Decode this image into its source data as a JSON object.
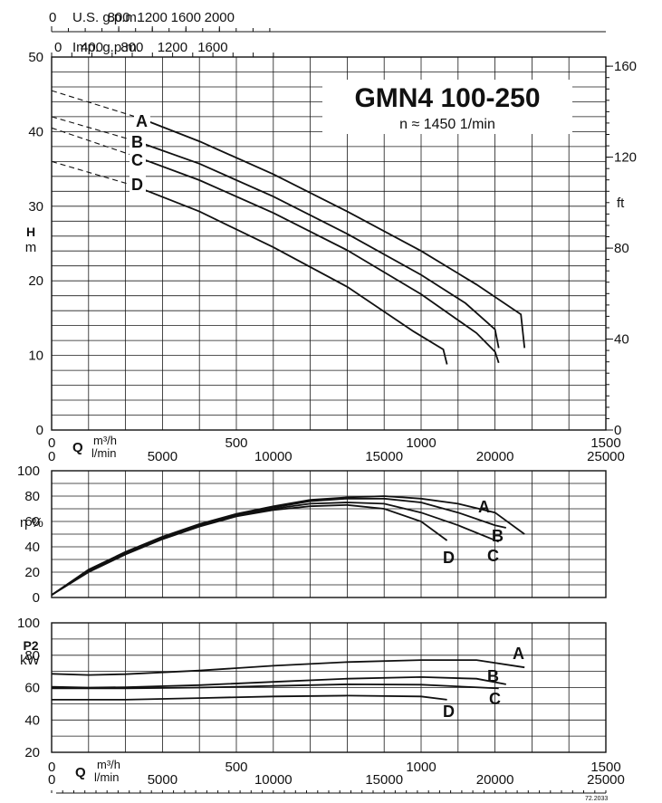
{
  "chart_data": [
    {
      "id": "head",
      "type": "line",
      "title": "GMN4 100-250",
      "subtitle": "n ≈ 1450 1/min",
      "xlabel_q": "Q",
      "xlabel_units": [
        "m³/h",
        "l/min"
      ],
      "ylabel": "H",
      "yunit": "m",
      "y2unit": "ft",
      "xlim": [
        0,
        1500
      ],
      "ylim": [
        0,
        50
      ],
      "y_ticks": [
        0,
        10,
        20,
        30,
        40,
        50
      ],
      "y2_ticks": [
        {
          "label": "0",
          "value": 0
        },
        {
          "label": "40",
          "value": 12.19
        },
        {
          "label": "80",
          "value": 24.38
        },
        {
          "label": "120",
          "value": 36.58
        },
        {
          "label": "160",
          "value": 48.77
        }
      ],
      "x_ticks_m3h": [
        {
          "label": "0",
          "value": 0
        },
        {
          "label": "500",
          "value": 500
        },
        {
          "label": "1000",
          "value": 1000
        },
        {
          "label": "1500",
          "value": 1500
        }
      ],
      "x_ticks_lmin": [
        {
          "label": "0",
          "value": 0
        },
        {
          "label": "5000",
          "value": 300
        },
        {
          "label": "10000",
          "value": 600
        },
        {
          "label": "15000",
          "value": 900
        },
        {
          "label": "20000",
          "value": 1200
        },
        {
          "label": "25000",
          "value": 1500
        }
      ],
      "top_axis_usgpm": {
        "label": "U.S. g.p.m.",
        "ticks": [
          {
            "label": "0",
            "value": 0
          },
          {
            "label": "800",
            "value": 181.7
          },
          {
            "label": "1200",
            "value": 272.5
          },
          {
            "label": "1600",
            "value": 363.4
          },
          {
            "label": "2000",
            "value": 454.2
          }
        ]
      },
      "top_axis_impgpm": {
        "label": "Imp. g.p.m.",
        "ticks": [
          {
            "label": "0",
            "value": 0
          },
          {
            "label": "400",
            "value": 109
          },
          {
            "label": "800",
            "value": 218
          },
          {
            "label": "1200",
            "value": 327
          },
          {
            "label": "1600",
            "value": 436
          }
        ]
      },
      "series": [
        {
          "name": "A",
          "extension": [
            [
              0,
              45.5
            ],
            [
              240,
              41.8
            ]
          ],
          "points": [
            [
              240,
              41.8
            ],
            [
              400,
              38.7
            ],
            [
              600,
              34.3
            ],
            [
              800,
              29.3
            ],
            [
              1000,
              24.0
            ],
            [
              1150,
              19.5
            ],
            [
              1270,
              15.5
            ],
            [
              1280,
              11.0
            ]
          ]
        },
        {
          "name": "B",
          "extension": [
            [
              0,
              42.0
            ],
            [
              230,
              38.7
            ]
          ],
          "points": [
            [
              230,
              38.7
            ],
            [
              400,
              35.7
            ],
            [
              600,
              31.3
            ],
            [
              800,
              26.3
            ],
            [
              1000,
              20.8
            ],
            [
              1120,
              17.0
            ],
            [
              1200,
              13.5
            ],
            [
              1210,
              11.0
            ]
          ]
        },
        {
          "name": "C",
          "extension": [
            [
              0,
              40.5
            ],
            [
              220,
              36.8
            ]
          ],
          "points": [
            [
              220,
              36.8
            ],
            [
              400,
              33.5
            ],
            [
              600,
              29.1
            ],
            [
              800,
              24.1
            ],
            [
              1000,
              18.2
            ],
            [
              1150,
              13.0
            ],
            [
              1200,
              10.5
            ],
            [
              1210,
              9.0
            ]
          ]
        },
        {
          "name": "D",
          "extension": [
            [
              0,
              36.0
            ],
            [
              220,
              32.8
            ]
          ],
          "points": [
            [
              220,
              32.8
            ],
            [
              400,
              29.3
            ],
            [
              600,
              24.5
            ],
            [
              800,
              19.2
            ],
            [
              980,
              13.2
            ],
            [
              1060,
              10.8
            ],
            [
              1070,
              8.8
            ]
          ]
        }
      ]
    },
    {
      "id": "efficiency",
      "type": "line",
      "ylabel": "η %",
      "xlim": [
        0,
        1500
      ],
      "ylim": [
        0,
        100
      ],
      "y_ticks": [
        0,
        20,
        40,
        60,
        80,
        100
      ],
      "series": [
        {
          "name": "A",
          "points": [
            [
              0,
              2
            ],
            [
              100,
              22
            ],
            [
              200,
              36
            ],
            [
              300,
              48
            ],
            [
              400,
              58
            ],
            [
              500,
              66
            ],
            [
              600,
              72
            ],
            [
              700,
              77
            ],
            [
              800,
              79
            ],
            [
              900,
              80
            ],
            [
              1000,
              78
            ],
            [
              1100,
              74
            ],
            [
              1200,
              67
            ],
            [
              1280,
              50
            ]
          ]
        },
        {
          "name": "B",
          "points": [
            [
              0,
              2
            ],
            [
              100,
              21
            ],
            [
              200,
              35
            ],
            [
              300,
              47
            ],
            [
              400,
              57
            ],
            [
              500,
              65
            ],
            [
              600,
              71
            ],
            [
              700,
              76
            ],
            [
              800,
              78
            ],
            [
              900,
              78
            ],
            [
              1000,
              75
            ],
            [
              1100,
              67
            ],
            [
              1200,
              57
            ],
            [
              1230,
              55
            ]
          ]
        },
        {
          "name": "C",
          "points": [
            [
              0,
              2
            ],
            [
              100,
              21
            ],
            [
              200,
              35
            ],
            [
              300,
              47
            ],
            [
              400,
              57
            ],
            [
              500,
              65
            ],
            [
              600,
              70
            ],
            [
              700,
              74
            ],
            [
              800,
              75
            ],
            [
              900,
              74
            ],
            [
              1000,
              67
            ],
            [
              1100,
              57
            ],
            [
              1210,
              44
            ]
          ]
        },
        {
          "name": "D",
          "points": [
            [
              0,
              2
            ],
            [
              100,
              20
            ],
            [
              200,
              34
            ],
            [
              300,
              46
            ],
            [
              400,
              56
            ],
            [
              500,
              64
            ],
            [
              600,
              69
            ],
            [
              700,
              72
            ],
            [
              800,
              73
            ],
            [
              900,
              70
            ],
            [
              1000,
              60
            ],
            [
              1070,
              45
            ]
          ]
        }
      ]
    },
    {
      "id": "power",
      "type": "line",
      "ylabel": "P2",
      "yunit": "kW",
      "xlabel_q": "Q",
      "xlabel_units": [
        "m³/h",
        "l/min"
      ],
      "xlim": [
        0,
        1500
      ],
      "ylim": [
        20,
        100
      ],
      "y_ticks": [
        20,
        40,
        60,
        80,
        100
      ],
      "x_ticks_m3h": [
        {
          "label": "0",
          "value": 0
        },
        {
          "label": "500",
          "value": 500
        },
        {
          "label": "1000",
          "value": 1000
        },
        {
          "label": "1500",
          "value": 1500
        }
      ],
      "x_ticks_lmin": [
        {
          "label": "0",
          "value": 0
        },
        {
          "label": "5000",
          "value": 300
        },
        {
          "label": "10000",
          "value": 600
        },
        {
          "label": "15000",
          "value": 900
        },
        {
          "label": "20000",
          "value": 1200
        },
        {
          "label": "25000",
          "value": 1500
        }
      ],
      "footnote": "72.2033",
      "series": [
        {
          "name": "A",
          "points": [
            [
              0,
              68.5
            ],
            [
              100,
              67.8
            ],
            [
              200,
              68.3
            ],
            [
              400,
              70.5
            ],
            [
              600,
              73.5
            ],
            [
              800,
              75.8
            ],
            [
              1000,
              77
            ],
            [
              1150,
              77
            ],
            [
              1280,
              72.5
            ]
          ]
        },
        {
          "name": "B",
          "points": [
            [
              0,
              60.5
            ],
            [
              100,
              60
            ],
            [
              200,
              60.2
            ],
            [
              400,
              61.5
            ],
            [
              600,
              63.5
            ],
            [
              800,
              65.5
            ],
            [
              1000,
              66.5
            ],
            [
              1150,
              65.5
            ],
            [
              1230,
              62
            ]
          ]
        },
        {
          "name": "C",
          "points": [
            [
              0,
              59.5
            ],
            [
              200,
              59.5
            ],
            [
              400,
              60
            ],
            [
              600,
              61
            ],
            [
              800,
              62
            ],
            [
              1000,
              61.8
            ],
            [
              1210,
              59.5
            ]
          ]
        },
        {
          "name": "D",
          "points": [
            [
              0,
              52.5
            ],
            [
              200,
              52.5
            ],
            [
              400,
              53.5
            ],
            [
              600,
              54.5
            ],
            [
              800,
              55
            ],
            [
              1000,
              54.5
            ],
            [
              1070,
              52.5
            ]
          ]
        }
      ]
    }
  ]
}
